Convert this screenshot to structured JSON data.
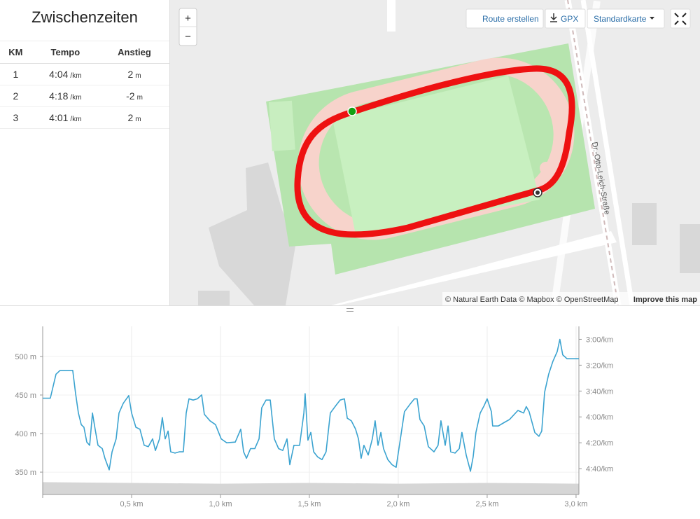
{
  "sidebar": {
    "title": "Zwischenzeiten",
    "headers": [
      "KM",
      "Tempo",
      "Anstieg"
    ],
    "rows": [
      {
        "km": "1",
        "tempo": "4:04",
        "tempo_unit": "/km",
        "rise": "2",
        "rise_unit": "m"
      },
      {
        "km": "2",
        "tempo": "4:18",
        "tempo_unit": "/km",
        "rise": "-2",
        "rise_unit": "m"
      },
      {
        "km": "3",
        "tempo": "4:01",
        "tempo_unit": "/km",
        "rise": "2",
        "rise_unit": "m"
      }
    ]
  },
  "map": {
    "zoom_in": "+",
    "zoom_out": "−",
    "buttons": [
      "Route erstellen",
      "GPX",
      "Standardkarte"
    ],
    "street": "Dr.-Otto-Leich-Straße",
    "attribution": "© Natural Earth Data © Mapbox © OpenStreetMap",
    "improve": "Improve this map"
  },
  "chart_data": {
    "type": "line",
    "x": [
      0,
      0.043,
      0.075,
      0.098,
      0.169,
      0.185,
      0.201,
      0.217,
      0.232,
      0.248,
      0.264,
      0.28,
      0.295,
      0.311,
      0.335,
      0.35,
      0.374,
      0.39,
      0.413,
      0.429,
      0.453,
      0.484,
      0.5,
      0.524,
      0.547,
      0.571,
      0.594,
      0.618,
      0.634,
      0.657,
      0.673,
      0.689,
      0.705,
      0.72,
      0.744,
      0.768,
      0.791,
      0.807,
      0.823,
      0.846,
      0.87,
      0.894,
      0.909,
      0.941,
      0.972,
      1.004,
      1.035,
      1.083,
      1.114,
      1.13,
      1.146,
      1.169,
      1.193,
      1.217,
      1.232,
      1.256,
      1.28,
      1.303,
      1.327,
      1.35,
      1.374,
      1.39,
      1.413,
      1.445,
      1.469,
      1.476,
      1.492,
      1.508,
      1.524,
      1.547,
      1.571,
      1.594,
      1.618,
      1.65,
      1.673,
      1.697,
      1.713,
      1.736,
      1.76,
      1.776,
      1.791,
      1.807,
      1.831,
      1.854,
      1.87,
      1.886,
      1.902,
      1.917,
      1.941,
      1.965,
      1.988,
      2.012,
      2.035,
      2.067,
      2.091,
      2.106,
      2.122,
      2.146,
      2.169,
      2.201,
      2.224,
      2.24,
      2.264,
      2.28,
      2.295,
      2.319,
      2.343,
      2.358,
      2.382,
      2.406,
      2.421,
      2.437,
      2.461,
      2.484,
      2.5,
      2.524,
      2.531,
      2.563,
      2.594,
      2.626,
      2.673,
      2.705,
      2.72,
      2.736,
      2.768,
      2.791,
      2.807,
      2.823,
      2.846,
      2.87,
      2.894,
      2.909,
      2.925,
      2.949,
      2.988,
      3.016
    ],
    "series": [
      {
        "color": "#3ba3d0",
        "axis": "y2",
        "values": [
          225.5,
          225.5,
          207,
          204,
          204,
          222,
          237,
          246,
          248,
          259.5,
          262,
          237,
          249.5,
          262,
          264.5,
          272,
          281,
          267,
          257,
          237,
          229.5,
          223.5,
          237,
          248,
          249.5,
          262,
          263,
          257,
          266,
          257,
          240.5,
          257,
          251,
          267,
          268,
          267,
          267,
          237,
          226,
          227,
          226,
          223,
          238,
          243,
          246,
          257,
          260,
          259.5,
          249.5,
          267,
          272,
          264.5,
          264.5,
          257,
          233,
          227,
          227,
          257,
          264.5,
          266,
          257,
          277,
          262,
          262,
          237,
          222,
          258,
          252,
          267,
          271,
          273,
          267,
          237,
          231,
          227,
          226,
          241,
          243,
          249.5,
          257,
          272,
          262,
          269.5,
          257,
          243,
          262,
          252,
          264.5,
          273,
          277,
          279,
          257,
          236,
          230,
          226,
          226,
          242,
          247,
          263,
          267,
          262,
          243,
          262,
          247,
          267,
          268,
          264.5,
          252,
          269.5,
          282,
          271,
          252,
          237,
          231,
          226,
          236,
          247,
          247,
          244.5,
          242,
          235,
          237,
          232,
          236,
          252,
          255,
          251,
          221,
          207,
          197,
          189.5,
          180,
          192,
          195,
          195,
          195
        ]
      }
    ],
    "elevation": {
      "color": "#d6d6d6",
      "x": [
        0,
        0.5,
        1,
        1.5,
        2,
        2.5,
        3.016
      ],
      "values": [
        337,
        336,
        335,
        336,
        335,
        336,
        335
      ]
    },
    "xlim": [
      0,
      3.016
    ],
    "xticks": [
      {
        "value": 0.5,
        "label": "0,5 km"
      },
      {
        "value": 1,
        "label": "1,0 km"
      },
      {
        "value": 1.5,
        "label": "1,5 km"
      },
      {
        "value": 2,
        "label": "2,0 km"
      },
      {
        "value": 2.5,
        "label": "2,5 km"
      },
      {
        "value": 3,
        "label": "3,0 km"
      }
    ],
    "ylim": [
      321,
      539
    ],
    "yticks": [
      {
        "value": 350,
        "label": "350 m"
      },
      {
        "value": 400,
        "label": "400 m"
      },
      {
        "value": 450,
        "label": "450 m"
      },
      {
        "value": 500,
        "label": "500 m"
      }
    ],
    "y2lim": [
      300,
      170
    ],
    "y2ticks": [
      {
        "value": 180,
        "label": "3:00/km"
      },
      {
        "value": 200,
        "label": "3:20/km"
      },
      {
        "value": 220,
        "label": "3:40/km"
      },
      {
        "value": 240,
        "label": "4:00/km"
      },
      {
        "value": 260,
        "label": "4:20/km"
      },
      {
        "value": 280,
        "label": "4:40/km"
      }
    ],
    "grid": true
  }
}
